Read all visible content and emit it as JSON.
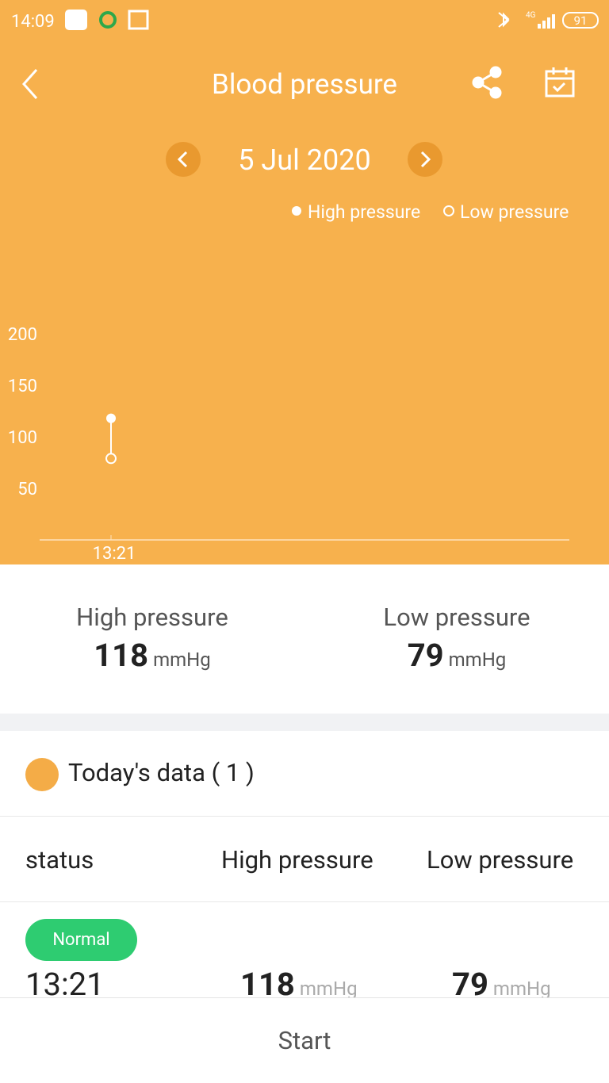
{
  "status_bar": {
    "time": "14:09",
    "network": "4G",
    "battery": "91"
  },
  "header": {
    "title": "Blood pressure"
  },
  "date_nav": {
    "date": "5 Jul 2020"
  },
  "chart_data": {
    "type": "range",
    "x": [
      "13:21"
    ],
    "series": [
      {
        "name": "High pressure",
        "color": "#ffffff",
        "values": [
          118
        ]
      },
      {
        "name": "Low pressure",
        "color": "#ffffff",
        "values": [
          79
        ]
      }
    ],
    "ylim": [
      0,
      200
    ],
    "yticks": [
      50,
      100,
      150,
      200
    ],
    "grid": false,
    "legend": "top-right"
  },
  "summary": {
    "high": {
      "label": "High pressure",
      "value": 118,
      "unit": "mmHg"
    },
    "low": {
      "label": "Low pressure",
      "value": 79,
      "unit": "mmHg"
    }
  },
  "today": {
    "title": "Today's data ( 1 )"
  },
  "table": {
    "headers": [
      "status",
      "High pressure",
      "Low pressure"
    ],
    "rows": [
      {
        "status": "Normal",
        "time": "13:21",
        "high": 118,
        "high_unit": "mmHg",
        "low": 79,
        "low_unit": "mmHg"
      }
    ]
  },
  "footer": {
    "button": "Start"
  }
}
